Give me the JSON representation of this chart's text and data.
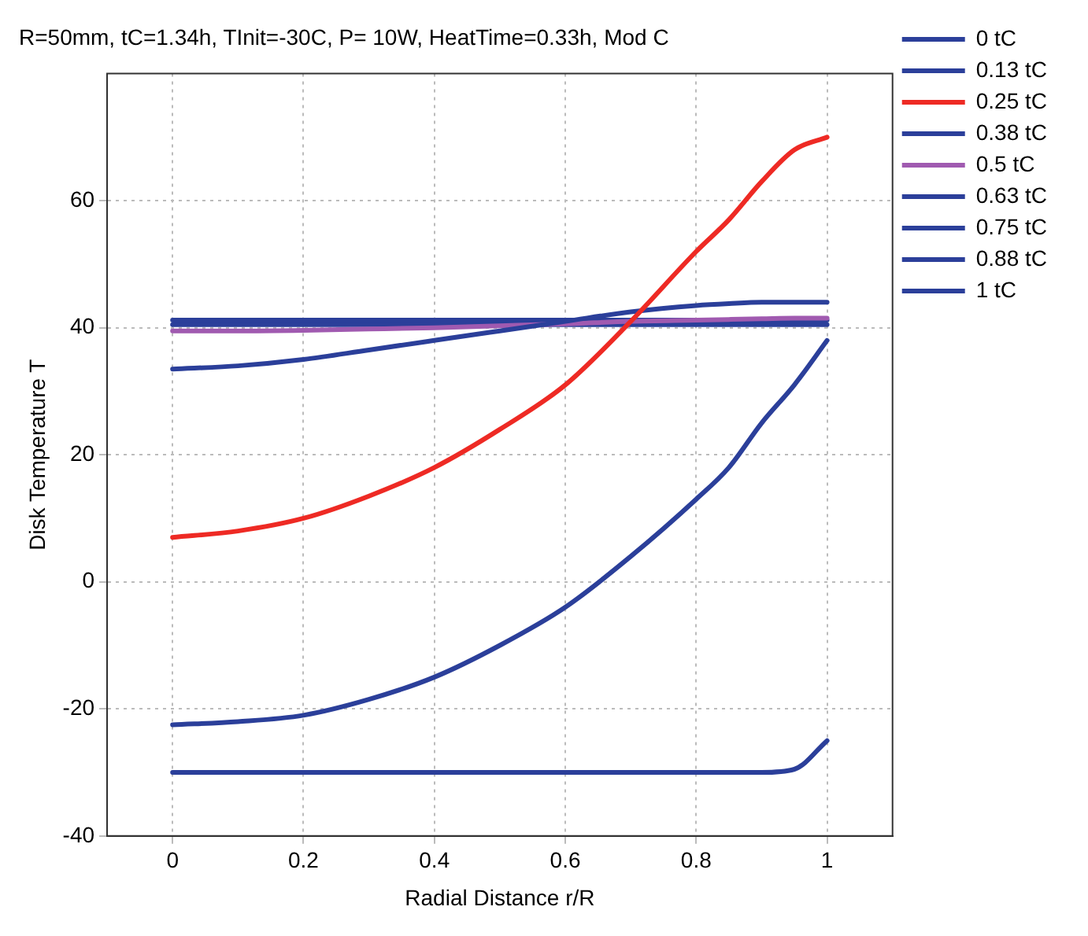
{
  "chart_data": {
    "type": "line",
    "title": "R=50mm, tC=1.34h, TInit=-30C, P= 10W, HeatTime=0.33h, Mod C",
    "xlabel": "Radial Distance r/R",
    "ylabel": "Disk Temperature T",
    "xlim": [
      -0.1,
      1.1
    ],
    "xticks": [
      0,
      0.2,
      0.4,
      0.6,
      0.8,
      1
    ],
    "ylim": [
      -40,
      80
    ],
    "yticks": [
      -40,
      -20,
      0,
      20,
      40,
      60
    ],
    "grid": true,
    "legend": "top right",
    "marker": "none",
    "line_style": "solid",
    "x": [
      0,
      0.1,
      0.2,
      0.3,
      0.4,
      0.5,
      0.6,
      0.7,
      0.8,
      0.85,
      0.9,
      0.95,
      1
    ],
    "series": [
      {
        "name": "0 tC",
        "color": "#2b3f9a",
        "values": [
          -30,
          -30,
          -30,
          -30,
          -30,
          -30,
          -30,
          -30,
          -30,
          -30,
          -30,
          -29.5,
          -25
        ]
      },
      {
        "name": "0.13 tC",
        "color": "#2b3f9a",
        "values": [
          -22.5,
          -22,
          -21,
          -18.5,
          -15,
          -10,
          -4,
          4,
          13,
          18,
          25,
          31,
          38
        ]
      },
      {
        "name": "0.25 tC",
        "color": "#ee2a24",
        "values": [
          7,
          8,
          10,
          13.5,
          18,
          24,
          31,
          41,
          52,
          57,
          63,
          68,
          70
        ]
      },
      {
        "name": "0.38 tC",
        "color": "#2b3f9a",
        "values": [
          33.5,
          34,
          35,
          36.5,
          38,
          39.5,
          41,
          42.5,
          43.5,
          43.8,
          44,
          44,
          44
        ]
      },
      {
        "name": "0.5 tC",
        "color": "#a05ab0",
        "values": [
          39.5,
          39.5,
          39.6,
          39.8,
          40,
          40.3,
          40.6,
          41,
          41.2,
          41.3,
          41.4,
          41.5,
          41.5
        ]
      },
      {
        "name": "0.63 tC",
        "color": "#2b3f9a",
        "values": [
          40.5,
          40.5,
          40.5,
          40.5,
          40.5,
          40.5,
          40.5,
          40.5,
          40.5,
          40.5,
          40.5,
          40.5,
          40.5
        ]
      },
      {
        "name": "0.75 tC",
        "color": "#2b3f9a",
        "values": [
          null,
          null,
          null,
          null,
          null,
          null,
          null,
          null,
          null,
          null,
          null,
          null,
          null
        ]
      },
      {
        "name": "0.88 tC",
        "color": "#2b3f9a",
        "values": [
          null,
          null,
          null,
          null,
          null,
          null,
          null,
          null,
          null,
          null,
          null,
          null,
          null
        ]
      },
      {
        "name": "1 tC",
        "color": "#2b3f9a",
        "values": [
          41.2,
          41.2,
          41.2,
          41.2,
          41.2,
          41.2,
          41.2,
          41.2,
          41.2,
          41.2,
          41.2,
          41.2,
          41.2
        ]
      }
    ]
  }
}
